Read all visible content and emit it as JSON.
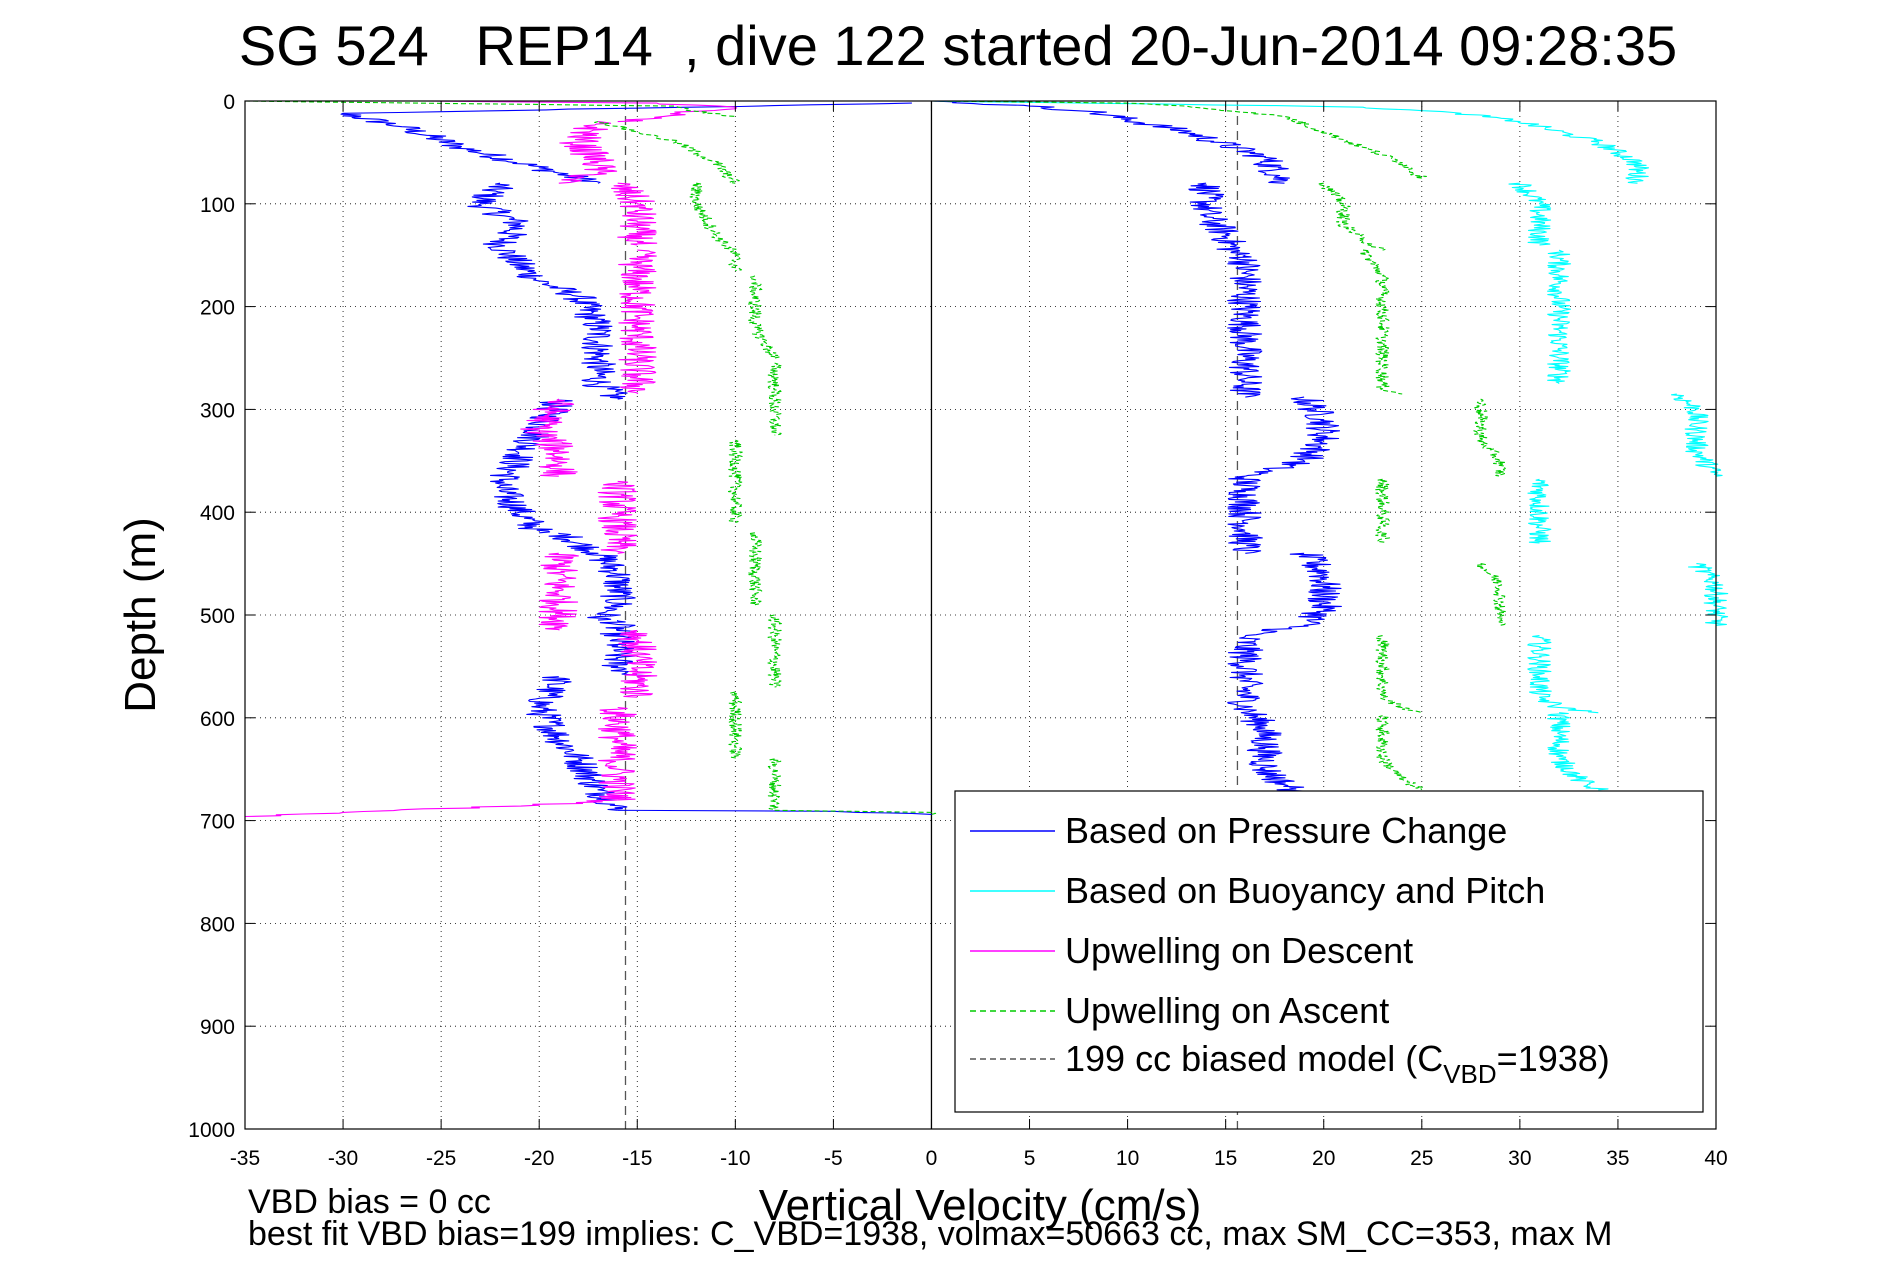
{
  "chart_data": {
    "type": "line",
    "title": "SG 524   REP14  , dive 122 started 20-Jun-2014 09:28:35",
    "xlabel": "Vertical Velocity (cm/s)",
    "ylabel": "Depth (m)",
    "xlim": [
      -35,
      40
    ],
    "ylim": [
      0,
      1000
    ],
    "y_reversed": true,
    "grid": true,
    "x_ticks": [
      -35,
      -30,
      -25,
      -20,
      -15,
      -10,
      -5,
      0,
      5,
      10,
      15,
      20,
      25,
      30,
      35,
      40
    ],
    "y_ticks": [
      0,
      100,
      200,
      300,
      400,
      500,
      600,
      700,
      800,
      900,
      1000
    ],
    "legend_position": "bottom-right",
    "reference_lines": [
      {
        "orientation": "vertical",
        "x": 0,
        "style": "solid",
        "color": "#000000"
      },
      {
        "orientation": "vertical",
        "x": -15.6,
        "style": "dashed",
        "color": "#555555"
      },
      {
        "orientation": "vertical",
        "x": 15.6,
        "style": "dashed",
        "color": "#555555"
      }
    ],
    "series": [
      {
        "name": "Based on Pressure Change",
        "color": "#0000ff",
        "style": "solid",
        "noise": 0.9,
        "segments": [
          {
            "x": [
              -1,
              -30,
              -27,
              -24,
              -20,
              -17
            ],
            "depth": [
              2,
              12,
              25,
              45,
              65,
              80
            ]
          },
          {
            "x": [
              -22,
              -23,
              -21,
              -22,
              -21,
              -20
            ],
            "depth": [
              80,
              100,
              120,
              140,
              160,
              175
            ]
          },
          {
            "x": [
              -20,
              -18,
              -17,
              -17,
              -17,
              -16
            ],
            "depth": [
              175,
              190,
              220,
              250,
              275,
              290
            ]
          },
          {
            "x": [
              -19,
              -20,
              -21,
              -22,
              -21,
              -20
            ],
            "depth": [
              290,
              320,
              345,
              375,
              400,
              420
            ]
          },
          {
            "x": [
              -19,
              -17,
              -16,
              -16,
              -17
            ],
            "depth": [
              420,
              440,
              460,
              490,
              505
            ]
          },
          {
            "x": [
              -16,
              -16,
              -16,
              -15
            ],
            "depth": [
              505,
              530,
              550,
              560
            ]
          },
          {
            "x": [
              -19,
              -20,
              -19,
              -18,
              -17,
              -16
            ],
            "depth": [
              560,
              590,
              620,
              640,
              670,
              690
            ]
          },
          {
            "x": [
              -16,
              -5,
              -1,
              0
            ],
            "depth": [
              690,
              691,
              693,
              694
            ]
          },
          {
            "x": [
              0,
              5,
              8,
              13,
              17,
              18
            ],
            "depth": [
              0,
              5,
              10,
              30,
              55,
              80
            ]
          },
          {
            "x": [
              14,
              14,
              15,
              15.5
            ],
            "depth": [
              80,
              110,
              130,
              150
            ]
          },
          {
            "x": [
              16,
              16,
              16,
              16,
              16
            ],
            "depth": [
              150,
              200,
              240,
              270,
              288
            ]
          },
          {
            "x": [
              19,
              20,
              20,
              19,
              16
            ],
            "depth": [
              288,
              310,
              330,
              350,
              365
            ]
          },
          {
            "x": [
              16,
              16,
              16,
              16,
              16
            ],
            "depth": [
              365,
              380,
              400,
              420,
              440
            ]
          },
          {
            "x": [
              19,
              20,
              20,
              20,
              19,
              16
            ],
            "depth": [
              440,
              460,
              480,
              495,
              510,
              520
            ]
          },
          {
            "x": [
              16,
              16,
              16,
              17,
              17,
              17,
              18,
              19
            ],
            "depth": [
              520,
              560,
              590,
              610,
              630,
              650,
              665,
              675
            ]
          }
        ]
      },
      {
        "name": "Based on Buoyancy and Pitch",
        "color": "#00ffff",
        "style": "solid",
        "noise": 0.6,
        "segments": [
          {
            "x": [
              0,
              12,
              22,
              27,
              30,
              34,
              36,
              36
            ],
            "depth": [
              0,
              3,
              6,
              12,
              20,
              40,
              60,
              80
            ]
          },
          {
            "x": [
              30,
              31,
              31,
              31
            ],
            "depth": [
              80,
              100,
              120,
              140
            ]
          },
          {
            "x": [
              32,
              32,
              32,
              32,
              32,
              32
            ],
            "depth": [
              145,
              170,
              200,
              220,
              250,
              275
            ]
          },
          {
            "x": [
              38,
              39,
              39,
              39,
              40
            ],
            "depth": [
              285,
              300,
              320,
              340,
              365
            ]
          },
          {
            "x": [
              31,
              31,
              31,
              31
            ],
            "depth": [
              368,
              390,
              410,
              430
            ]
          },
          {
            "x": [
              39,
              40,
              40,
              40
            ],
            "depth": [
              450,
              470,
              490,
              510
            ]
          },
          {
            "x": [
              31,
              31,
              31,
              31,
              32,
              34
            ],
            "depth": [
              520,
              540,
              560,
              580,
              590,
              595
            ]
          },
          {
            "x": [
              32,
              32,
              32,
              33,
              34
            ],
            "depth": [
              595,
              620,
              640,
              660,
              670
            ]
          }
        ]
      },
      {
        "name": "Upwelling on Descent",
        "color": "#ff00ff",
        "style": "solid",
        "noise": 1.0,
        "segments": [
          {
            "x": [
              -26,
              -14,
              -12,
              -10,
              -12,
              -16
            ],
            "depth": [
              0,
              2,
              4,
              6,
              10,
              20
            ]
          },
          {
            "x": [
              -17,
              -18,
              -17,
              -17,
              -18,
              -19
            ],
            "depth": [
              20,
              40,
              60,
              70,
              75,
              80
            ]
          },
          {
            "x": [
              -16,
              -15,
              -15,
              -15
            ],
            "depth": [
              80,
              100,
              120,
              140
            ]
          },
          {
            "x": [
              -15,
              -15,
              -15,
              -15,
              -15
            ],
            "depth": [
              145,
              180,
              210,
              250,
              285
            ]
          },
          {
            "x": [
              -19,
              -20,
              -19,
              -19
            ],
            "depth": [
              290,
              320,
              340,
              365
            ]
          },
          {
            "x": [
              -16,
              -16,
              -16,
              -16
            ],
            "depth": [
              370,
              400,
              420,
              440
            ]
          },
          {
            "x": [
              -19,
              -19,
              -19,
              -19,
              -19
            ],
            "depth": [
              440,
              460,
              480,
              500,
              515
            ]
          },
          {
            "x": [
              -15,
              -15,
              -15,
              -15
            ],
            "depth": [
              515,
              540,
              560,
              580
            ]
          },
          {
            "x": [
              -16,
              -16,
              -16,
              -16
            ],
            "depth": [
              590,
              620,
              650,
              680
            ]
          },
          {
            "x": [
              -16,
              -20,
              -30,
              -35
            ],
            "depth": [
              680,
              685,
              692,
              696
            ]
          }
        ]
      },
      {
        "name": "Upwelling on Ascent",
        "color": "#00cc00",
        "style": "dashed",
        "noise": 0.35,
        "segments": [
          {
            "x": [
              -35,
              -13,
              -12,
              -10
            ],
            "depth": [
              0,
              5,
              10,
              15
            ]
          },
          {
            "x": [
              -17,
              -15,
              -13,
              -11,
              -10
            ],
            "depth": [
              20,
              30,
              40,
              60,
              80
            ]
          },
          {
            "x": [
              -12,
              -12,
              -11,
              -10,
              -10
            ],
            "depth": [
              80,
              100,
              130,
              150,
              165
            ]
          },
          {
            "x": [
              -9,
              -9,
              -9,
              -8
            ],
            "depth": [
              170,
              200,
              220,
              250
            ]
          },
          {
            "x": [
              -8,
              -8,
              -8,
              -8
            ],
            "depth": [
              255,
              280,
              300,
              325
            ]
          },
          {
            "x": [
              -10,
              -10,
              -10,
              -10
            ],
            "depth": [
              330,
              360,
              390,
              410
            ]
          },
          {
            "x": [
              -9,
              -9,
              -9,
              -9
            ],
            "depth": [
              420,
              440,
              460,
              490
            ]
          },
          {
            "x": [
              -8,
              -8,
              -8,
              -8
            ],
            "depth": [
              500,
              520,
              540,
              570
            ]
          },
          {
            "x": [
              -10,
              -10,
              -10,
              -10
            ],
            "depth": [
              575,
              600,
              620,
              640
            ]
          },
          {
            "x": [
              -8,
              -8,
              -8,
              -8
            ],
            "depth": [
              640,
              660,
              680,
              690
            ]
          },
          {
            "x": [
              -8,
              0,
              0
            ],
            "depth": [
              690,
              692,
              694
            ]
          },
          {
            "x": [
              0,
              10,
              13,
              18,
              20,
              22,
              24,
              25
            ],
            "depth": [
              0,
              2,
              5,
              15,
              30,
              45,
              60,
              75
            ]
          },
          {
            "x": [
              20,
              21,
              21,
              22,
              23
            ],
            "depth": [
              80,
              100,
              120,
              135,
              145
            ]
          },
          {
            "x": [
              22,
              23,
              23,
              23,
              23,
              23,
              24
            ],
            "depth": [
              145,
              170,
              200,
              230,
              260,
              280,
              285
            ]
          },
          {
            "x": [
              28,
              28,
              28,
              29,
              29
            ],
            "depth": [
              290,
              310,
              330,
              350,
              365
            ]
          },
          {
            "x": [
              23,
              23,
              23,
              23
            ],
            "depth": [
              368,
              390,
              410,
              430
            ]
          },
          {
            "x": [
              28,
              29,
              29,
              29
            ],
            "depth": [
              450,
              470,
              490,
              510
            ]
          },
          {
            "x": [
              23,
              23,
              23,
              23,
              24,
              25
            ],
            "depth": [
              520,
              540,
              560,
              580,
              590,
              595
            ]
          },
          {
            "x": [
              23,
              23,
              23,
              24,
              25
            ],
            "depth": [
              598,
              620,
              640,
              660,
              670
            ]
          }
        ]
      },
      {
        "name": "199 cc biased model (C",
        "name_sub": "VBD",
        "name_suffix": "=1938)",
        "color": "#555555",
        "style": "dashed",
        "legend_only": true
      }
    ]
  },
  "footer": {
    "line1": "VBD bias = 0 cc",
    "line2": "best fit VBD bias=199 implies: C_VBD=1938, volmax=50663 cc, max SM_CC=353, max M"
  }
}
